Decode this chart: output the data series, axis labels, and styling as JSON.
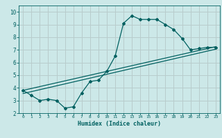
{
  "xlabel": "Humidex (Indice chaleur)",
  "bg_color": "#cce8e8",
  "grid_color": "#b8cccc",
  "line_color": "#006060",
  "xlim": [
    -0.5,
    23.5
  ],
  "ylim": [
    2,
    10.5
  ],
  "xticks": [
    0,
    1,
    2,
    3,
    4,
    5,
    6,
    7,
    8,
    9,
    10,
    11,
    12,
    13,
    14,
    15,
    16,
    17,
    18,
    19,
    20,
    21,
    22,
    23
  ],
  "yticks": [
    2,
    3,
    4,
    5,
    6,
    7,
    8,
    9,
    10
  ],
  "line1_x": [
    0,
    1,
    2,
    3,
    4,
    5,
    6,
    7,
    8,
    9,
    10,
    11,
    12,
    13,
    14,
    15,
    16,
    17,
    18,
    19,
    20,
    21,
    22,
    23
  ],
  "line1_y": [
    3.8,
    3.4,
    3.0,
    3.1,
    3.0,
    2.4,
    2.5,
    3.6,
    4.5,
    4.6,
    5.3,
    6.5,
    9.1,
    9.7,
    9.4,
    9.4,
    9.4,
    9.0,
    8.6,
    7.9,
    7.0,
    7.1,
    7.2,
    7.2
  ],
  "line2_x": [
    0,
    23
  ],
  "line2_y": [
    3.8,
    7.25
  ],
  "line3_x": [
    0,
    23
  ],
  "line3_y": [
    3.55,
    7.05
  ]
}
